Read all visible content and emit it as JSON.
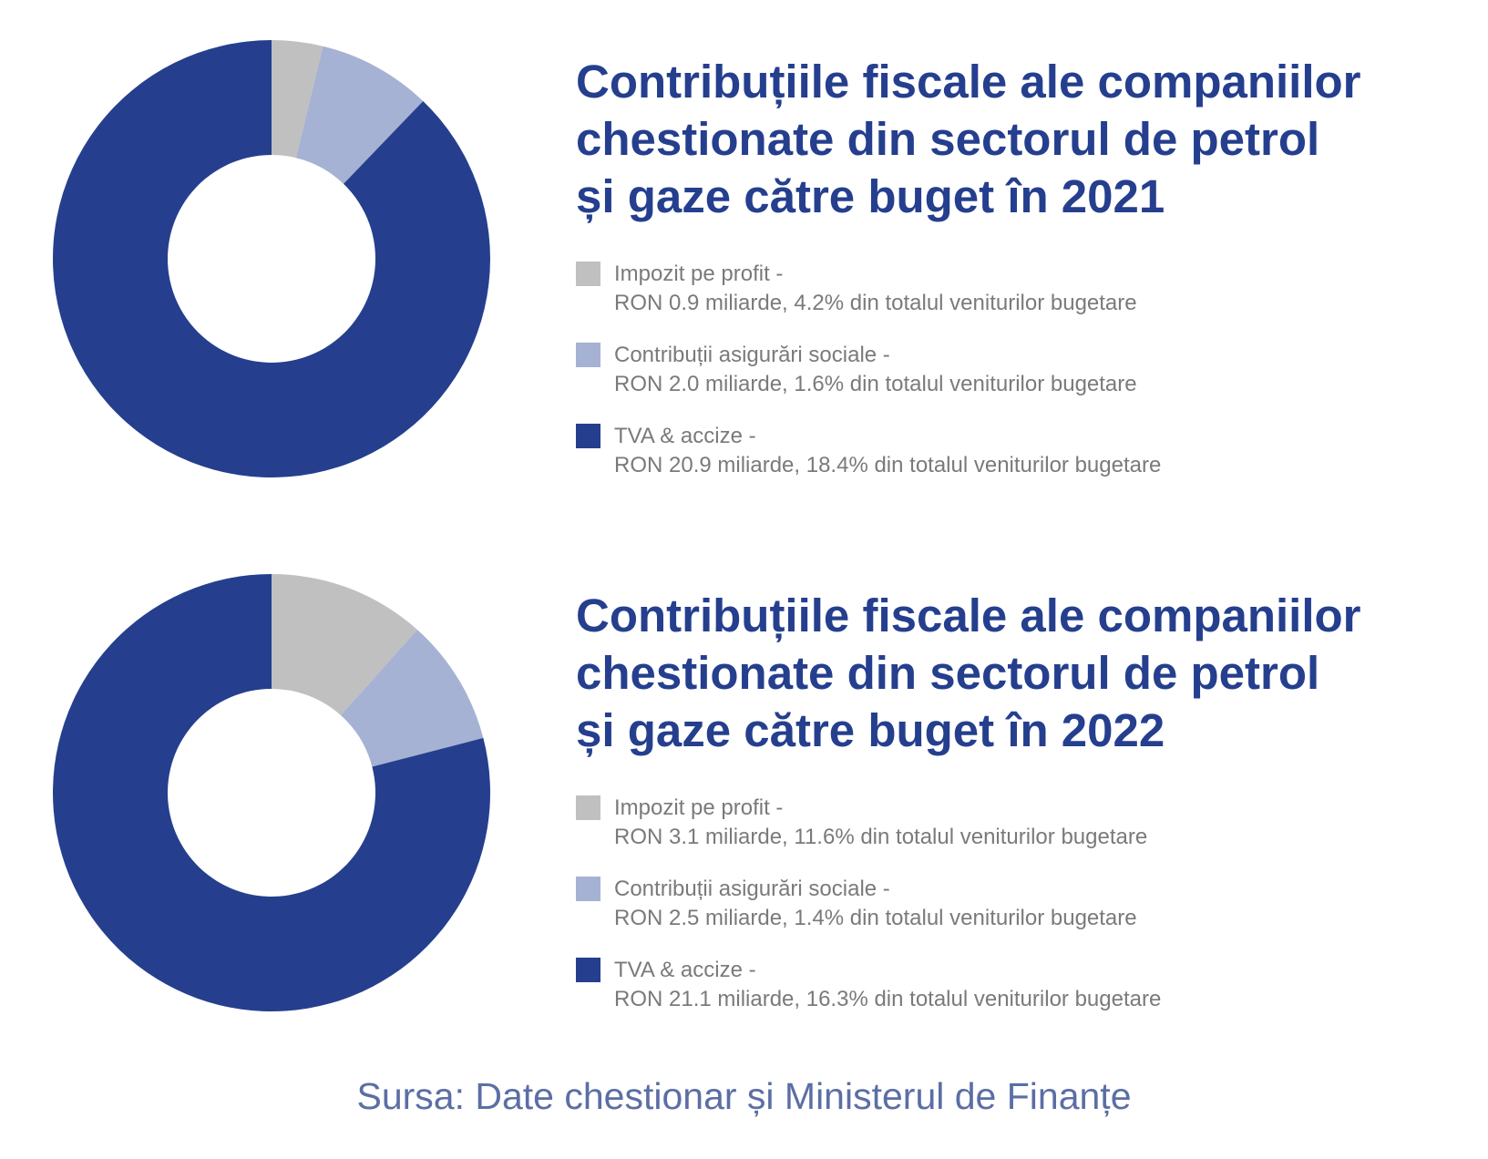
{
  "colors": {
    "impozit": "#c0c0c0",
    "contributii": "#a6b2d4",
    "tva": "#253f8e",
    "title": "#253f8e",
    "source": "#5b6ea5"
  },
  "chart_data": [
    {
      "type": "pie",
      "variant": "donut",
      "title": "Contribuțiile fiscale ale companiilor\nchestionate din sectorul de petrol\nși gaze către buget în 2021",
      "categories": [
        "Impozit pe profit",
        "Contribuții asigurări sociale",
        "TVA & accize"
      ],
      "values": [
        0.9,
        2.0,
        20.9
      ],
      "unit": "miliarde RON",
      "legend": [
        {
          "line1": "Impozit pe profit -",
          "line2": "RON 0.9 miliarde, 4.2% din totalul veniturilor bugetare",
          "color": "#c0c0c0"
        },
        {
          "line1": "Contribuții asigurări sociale -",
          "line2": "RON 2.0 miliarde, 1.6% din totalul veniturilor bugetare",
          "color": "#a6b2d4"
        },
        {
          "line1": "TVA & accize -",
          "line2": "RON 20.9 miliarde, 18.4% din totalul veniturilor bugetare",
          "color": "#253f8e"
        }
      ]
    },
    {
      "type": "pie",
      "variant": "donut",
      "title": "Contribuțiile fiscale ale companiilor\nchestionate din sectorul de petrol\nși gaze către buget în 2022",
      "categories": [
        "Impozit pe profit",
        "Contribuții asigurări sociale",
        "TVA & accize"
      ],
      "values": [
        3.1,
        2.5,
        21.1
      ],
      "unit": "miliarde RON",
      "legend": [
        {
          "line1": "Impozit pe profit -",
          "line2": "RON 3.1 miliarde, 11.6% din totalul veniturilor bugetare",
          "color": "#c0c0c0"
        },
        {
          "line1": "Contribuții asigurări sociale -",
          "line2": "RON 2.5 miliarde, 1.4% din totalul veniturilor bugetare",
          "color": "#a6b2d4"
        },
        {
          "line1": "TVA & accize -",
          "line2": "RON 21.1 miliarde, 16.3% din totalul veniturilor bugetare",
          "color": "#253f8e"
        }
      ]
    }
  ],
  "source": "Sursa: Date chestionar și Ministerul de Finanțe"
}
